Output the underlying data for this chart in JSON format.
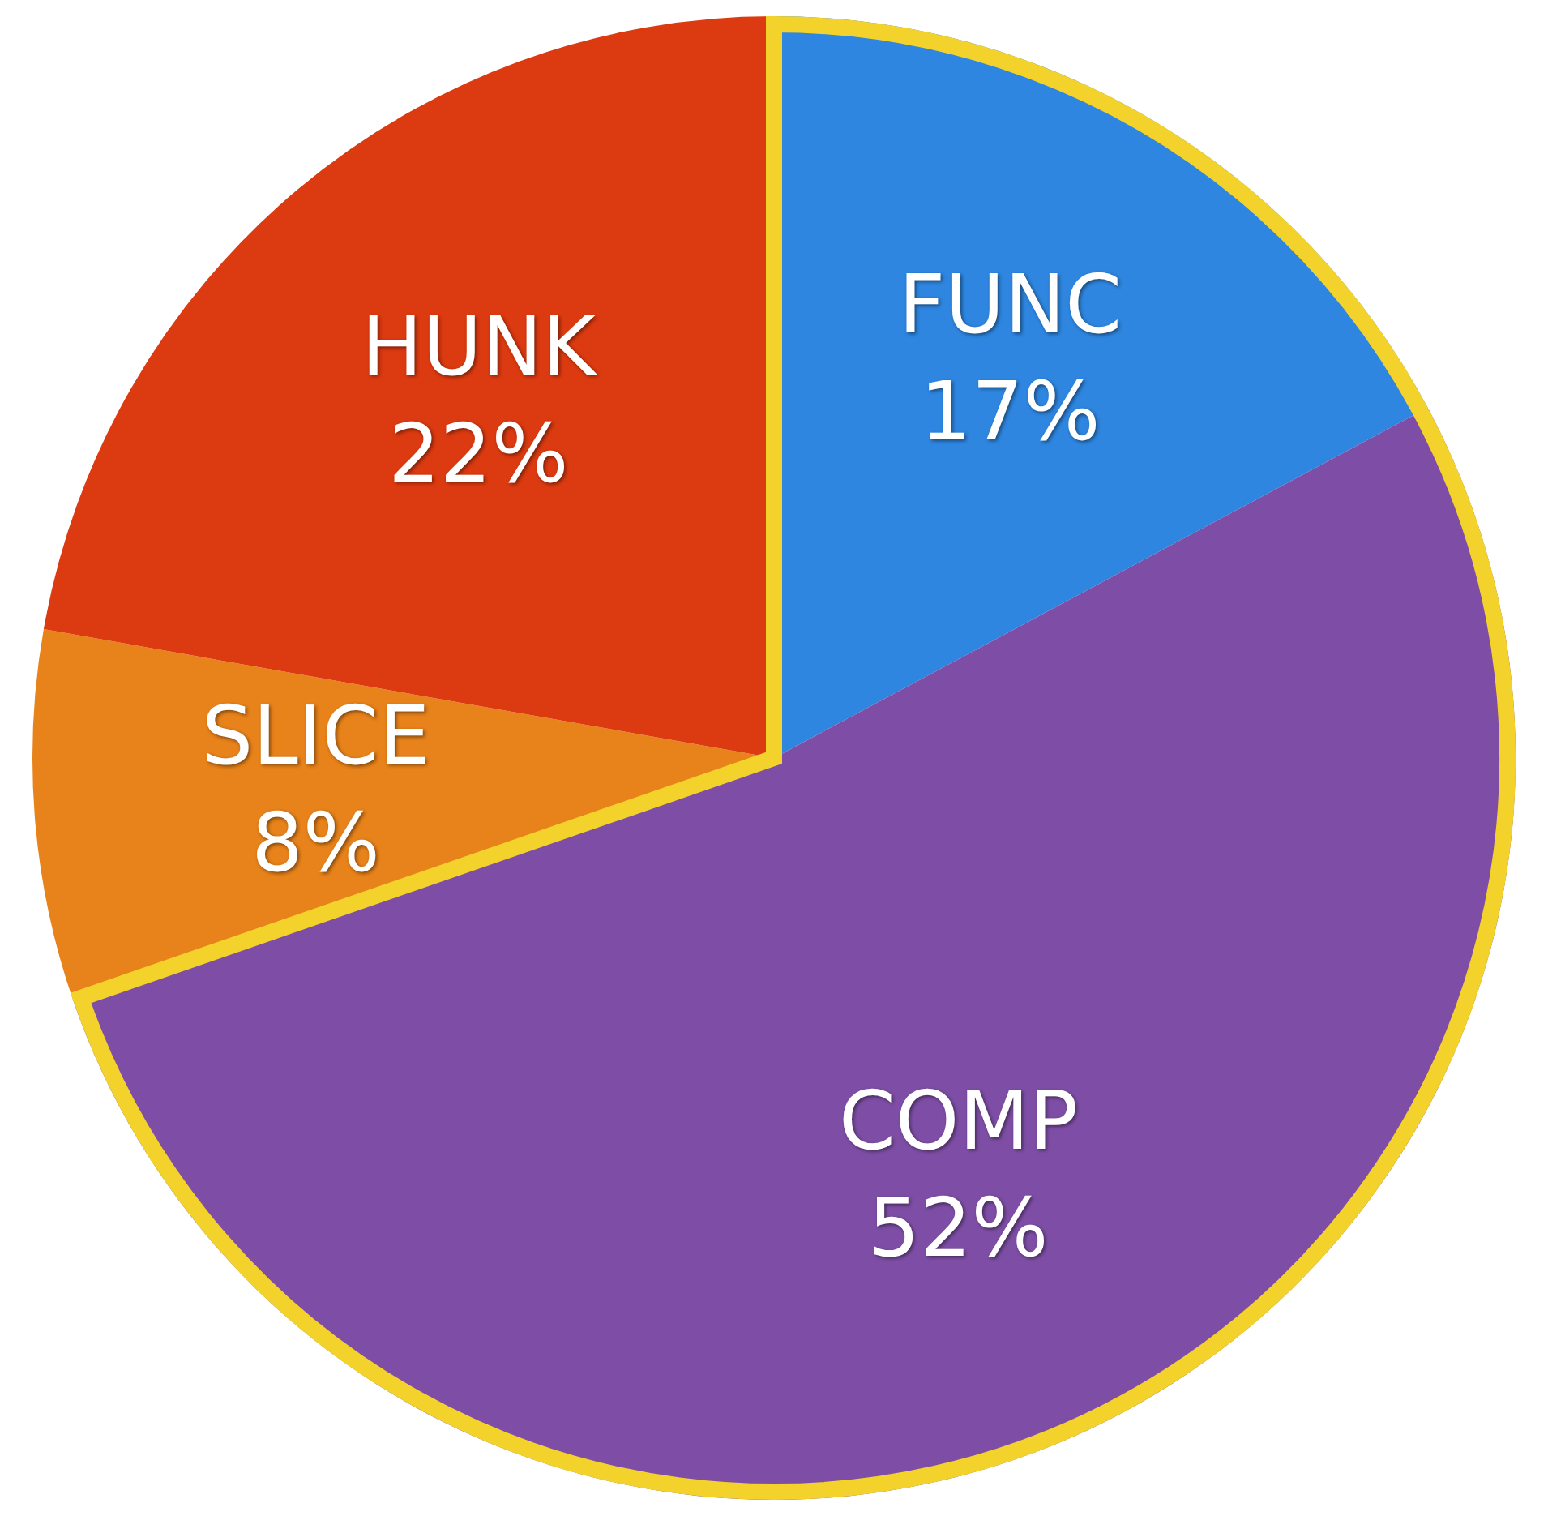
{
  "chart_data": {
    "type": "pie",
    "categories": [
      "FUNC",
      "COMP",
      "SLICE",
      "HUNK"
    ],
    "values": [
      17,
      52,
      8,
      22
    ],
    "value_labels": [
      "17%",
      "52%",
      "8%",
      "22%"
    ],
    "colors": [
      "#2e86e0",
      "#7e4ea6",
      "#e8821a",
      "#dc3a10"
    ],
    "legend": false
  }
}
